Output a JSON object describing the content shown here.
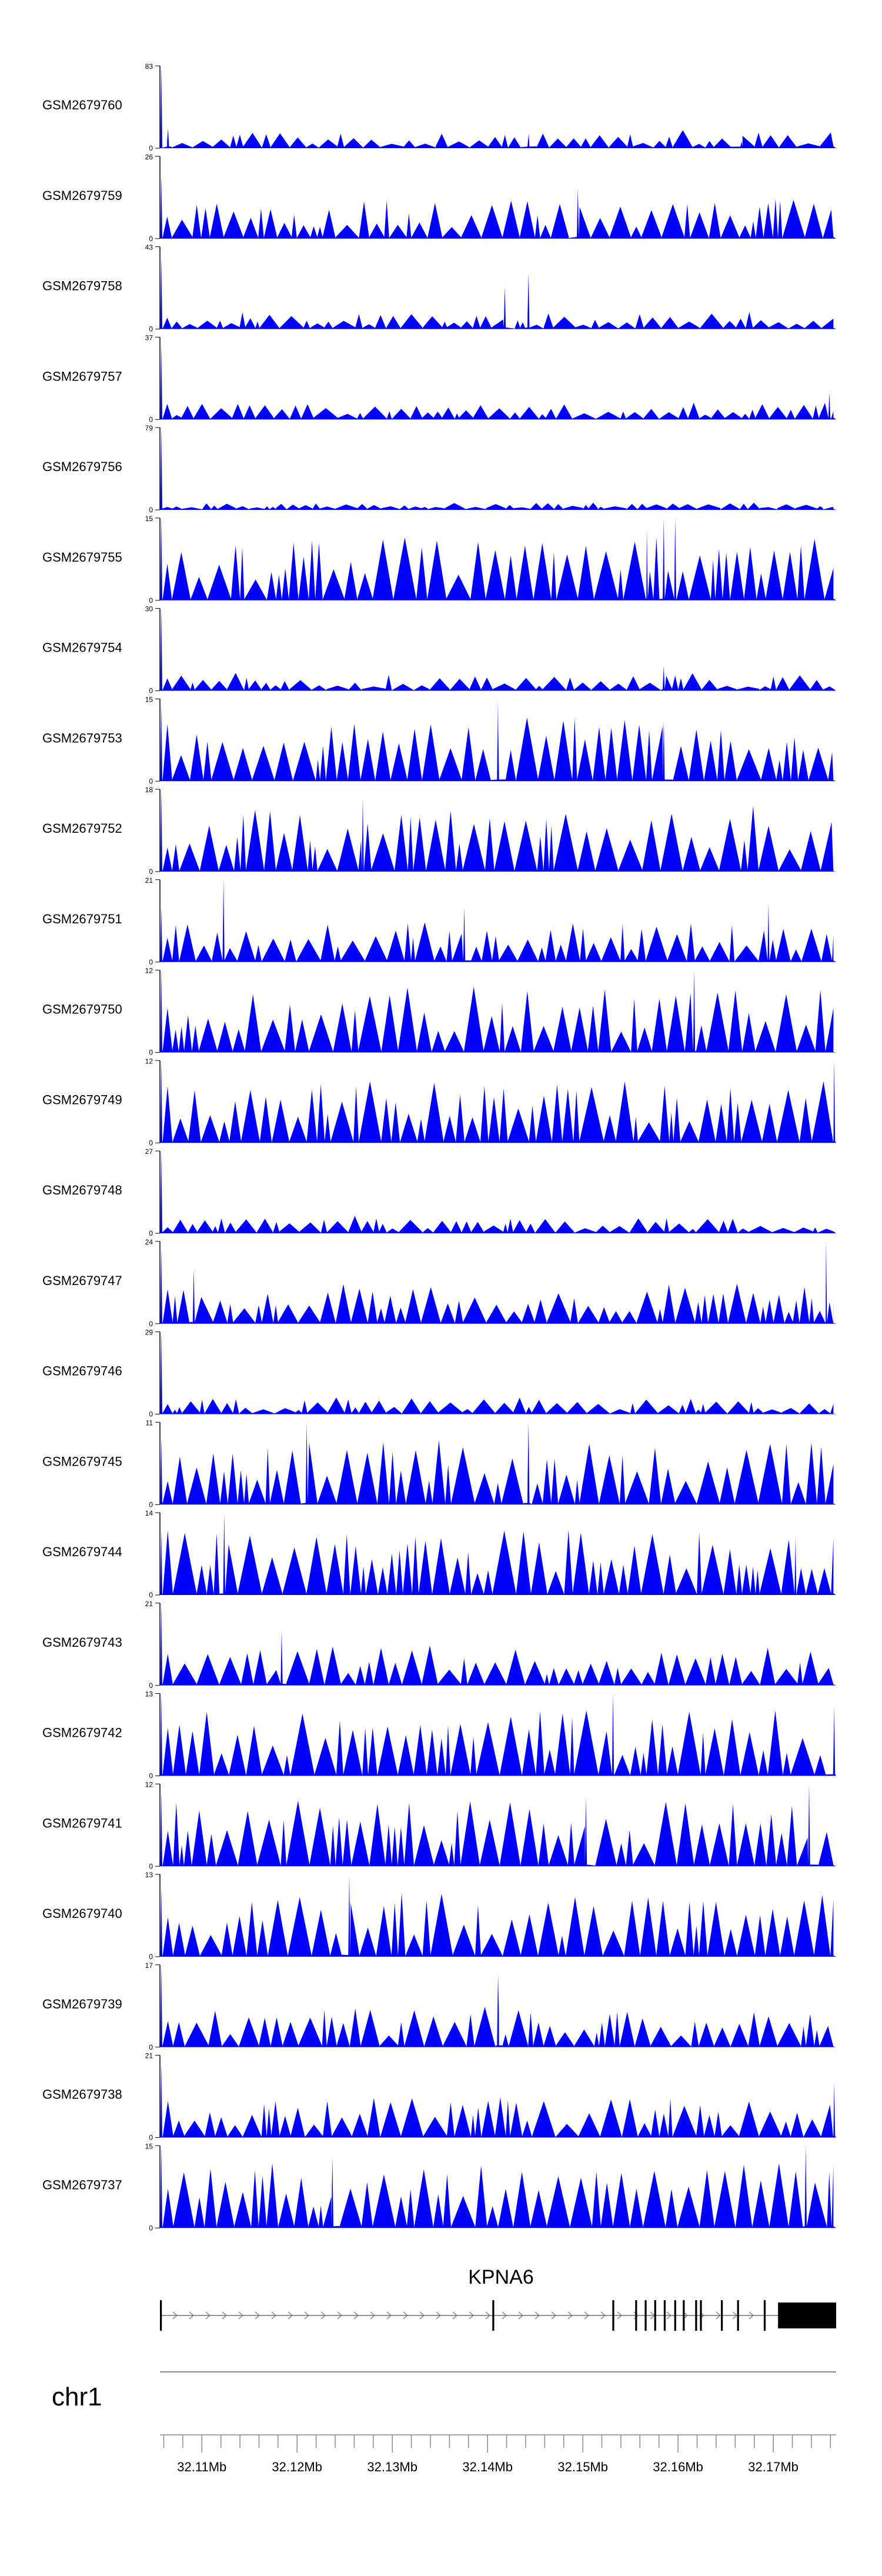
{
  "chart_data": {
    "type": "area",
    "title": "",
    "chromosome": "chr1",
    "gene": "KPNA6",
    "xlim": [
      32.1056,
      32.1766
    ],
    "x_ticks": [
      32.11,
      32.12,
      32.13,
      32.14,
      32.15,
      32.16,
      32.17
    ],
    "x_tick_labels": [
      "32.11Mb",
      "32.12Mb",
      "32.13Mb",
      "32.14Mb",
      "32.15Mb",
      "32.16Mb",
      "32.17Mb"
    ],
    "tracks": [
      {
        "name": "GSM2679760",
        "ymax": 83,
        "ymin_label": "0",
        "ymax_label": "83",
        "seed": 11,
        "profile": "spiky",
        "peaks": [
          {
            "x": 0.002,
            "y": 83
          },
          {
            "x": 0.012,
            "y": 20
          },
          {
            "x": 0.545,
            "y": 12
          },
          {
            "x": 0.86,
            "y": 7
          }
        ]
      },
      {
        "name": "GSM2679759",
        "ymax": 26,
        "ymin_label": "0",
        "ymax_label": "26",
        "seed": 23,
        "profile": "medium",
        "peaks": [
          {
            "x": 0.002,
            "y": 20
          },
          {
            "x": 0.618,
            "y": 16
          }
        ]
      },
      {
        "name": "GSM2679758",
        "ymax": 43,
        "ymin_label": "0",
        "ymax_label": "43",
        "seed": 37,
        "profile": "spiky",
        "peaks": [
          {
            "x": 0.002,
            "y": 38
          },
          {
            "x": 0.51,
            "y": 22
          },
          {
            "x": 0.545,
            "y": 29
          }
        ]
      },
      {
        "name": "GSM2679757",
        "ymax": 37,
        "ymin_label": "0",
        "ymax_label": "37",
        "seed": 41,
        "profile": "spiky",
        "peaks": [
          {
            "x": 0.002,
            "y": 34
          },
          {
            "x": 0.99,
            "y": 12
          }
        ]
      },
      {
        "name": "GSM2679756",
        "ymax": 79,
        "ymin_label": "0",
        "ymax_label": "79",
        "seed": 53,
        "profile": "verylow",
        "peaks": [
          {
            "x": 0.002,
            "y": 79
          }
        ]
      },
      {
        "name": "GSM2679755",
        "ymax": 15,
        "ymin_label": "0",
        "ymax_label": "15",
        "seed": 67,
        "profile": "dense",
        "peaks": [
          {
            "x": 0.002,
            "y": 15
          },
          {
            "x": 0.72,
            "y": 13
          },
          {
            "x": 0.745,
            "y": 15
          },
          {
            "x": 0.762,
            "y": 15
          }
        ]
      },
      {
        "name": "GSM2679754",
        "ymax": 30,
        "ymin_label": "0",
        "ymax_label": "30",
        "seed": 71,
        "profile": "spiky",
        "peaks": [
          {
            "x": 0.002,
            "y": 30
          },
          {
            "x": 0.745,
            "y": 9
          }
        ]
      },
      {
        "name": "GSM2679753",
        "ymax": 15,
        "ymin_label": "0",
        "ymax_label": "15",
        "seed": 83,
        "profile": "dense",
        "peaks": [
          {
            "x": 0.002,
            "y": 14
          },
          {
            "x": 0.5,
            "y": 15
          },
          {
            "x": 0.745,
            "y": 11
          }
        ]
      },
      {
        "name": "GSM2679752",
        "ymax": 18,
        "ymin_label": "0",
        "ymax_label": "18",
        "seed": 97,
        "profile": "dense",
        "peaks": [
          {
            "x": 0.002,
            "y": 18
          },
          {
            "x": 0.3,
            "y": 16
          }
        ]
      },
      {
        "name": "GSM2679751",
        "ymax": 21,
        "ymin_label": "0",
        "ymax_label": "21",
        "seed": 101,
        "profile": "medium",
        "peaks": [
          {
            "x": 0.002,
            "y": 14
          },
          {
            "x": 0.094,
            "y": 21
          },
          {
            "x": 0.45,
            "y": 14
          },
          {
            "x": 0.9,
            "y": 15
          }
        ]
      },
      {
        "name": "GSM2679750",
        "ymax": 12,
        "ymin_label": "0",
        "ymax_label": "12",
        "seed": 113,
        "profile": "dense",
        "peaks": [
          {
            "x": 0.002,
            "y": 12
          },
          {
            "x": 0.79,
            "y": 12
          }
        ]
      },
      {
        "name": "GSM2679749",
        "ymax": 12,
        "ymin_label": "0",
        "ymax_label": "12",
        "seed": 127,
        "profile": "dense",
        "peaks": [
          {
            "x": 0.002,
            "y": 12
          },
          {
            "x": 0.997,
            "y": 12
          }
        ]
      },
      {
        "name": "GSM2679748",
        "ymax": 27,
        "ymin_label": "0",
        "ymax_label": "27",
        "seed": 131,
        "profile": "spiky",
        "peaks": [
          {
            "x": 0.002,
            "y": 27
          }
        ]
      },
      {
        "name": "GSM2679747",
        "ymax": 24,
        "ymin_label": "0",
        "ymax_label": "24",
        "seed": 149,
        "profile": "medium",
        "peaks": [
          {
            "x": 0.002,
            "y": 22
          },
          {
            "x": 0.05,
            "y": 16
          },
          {
            "x": 0.985,
            "y": 24
          }
        ]
      },
      {
        "name": "GSM2679746",
        "ymax": 29,
        "ymin_label": "0",
        "ymax_label": "29",
        "seed": 157,
        "profile": "spiky",
        "peaks": [
          {
            "x": 0.002,
            "y": 29
          }
        ]
      },
      {
        "name": "GSM2679745",
        "ymax": 11,
        "ymin_label": "0",
        "ymax_label": "11",
        "seed": 163,
        "profile": "dense",
        "peaks": [
          {
            "x": 0.002,
            "y": 9
          },
          {
            "x": 0.217,
            "y": 11
          },
          {
            "x": 0.545,
            "y": 11
          }
        ]
      },
      {
        "name": "GSM2679744",
        "ymax": 14,
        "ymin_label": "0",
        "ymax_label": "14",
        "seed": 173,
        "profile": "dense",
        "peaks": [
          {
            "x": 0.002,
            "y": 11
          },
          {
            "x": 0.095,
            "y": 14
          },
          {
            "x": 0.94,
            "y": 10
          }
        ]
      },
      {
        "name": "GSM2679743",
        "ymax": 21,
        "ymin_label": "0",
        "ymax_label": "21",
        "seed": 181,
        "profile": "medium",
        "peaks": [
          {
            "x": 0.002,
            "y": 21
          },
          {
            "x": 0.18,
            "y": 14
          }
        ]
      },
      {
        "name": "GSM2679742",
        "ymax": 13,
        "ymin_label": "0",
        "ymax_label": "13",
        "seed": 191,
        "profile": "dense",
        "peaks": [
          {
            "x": 0.002,
            "y": 13
          },
          {
            "x": 0.67,
            "y": 13
          },
          {
            "x": 0.997,
            "y": 11
          }
        ]
      },
      {
        "name": "GSM2679741",
        "ymax": 12,
        "ymin_label": "0",
        "ymax_label": "12",
        "seed": 199,
        "profile": "dense",
        "peaks": [
          {
            "x": 0.002,
            "y": 11
          },
          {
            "x": 0.63,
            "y": 10
          },
          {
            "x": 0.96,
            "y": 12
          }
        ]
      },
      {
        "name": "GSM2679740",
        "ymax": 13,
        "ymin_label": "0",
        "ymax_label": "13",
        "seed": 211,
        "profile": "dense",
        "peaks": [
          {
            "x": 0.002,
            "y": 11
          },
          {
            "x": 0.28,
            "y": 13
          }
        ]
      },
      {
        "name": "GSM2679739",
        "ymax": 17,
        "ymin_label": "0",
        "ymax_label": "17",
        "seed": 223,
        "profile": "medium",
        "peaks": [
          {
            "x": 0.002,
            "y": 17
          },
          {
            "x": 0.5,
            "y": 15
          }
        ]
      },
      {
        "name": "GSM2679738",
        "ymax": 21,
        "ymin_label": "0",
        "ymax_label": "21",
        "seed": 227,
        "profile": "medium",
        "peaks": [
          {
            "x": 0.002,
            "y": 19
          },
          {
            "x": 0.997,
            "y": 14
          }
        ]
      },
      {
        "name": "GSM2679737",
        "ymax": 15,
        "ymin_label": "0",
        "ymax_label": "15",
        "seed": 233,
        "profile": "dense",
        "peaks": [
          {
            "x": 0.002,
            "y": 15
          },
          {
            "x": 0.255,
            "y": 13
          },
          {
            "x": 0.955,
            "y": 15
          }
        ]
      }
    ],
    "gene_model": {
      "strand": "+",
      "start": 32.1056,
      "end": 32.1766,
      "exons": [
        {
          "start": 32.1056,
          "end": 32.1058
        },
        {
          "start": 32.1405,
          "end": 32.1407
        },
        {
          "start": 32.1531,
          "end": 32.1533
        },
        {
          "start": 32.1555,
          "end": 32.1557
        },
        {
          "start": 32.1565,
          "end": 32.1567
        },
        {
          "start": 32.1575,
          "end": 32.1577
        },
        {
          "start": 32.1585,
          "end": 32.1587
        },
        {
          "start": 32.1596,
          "end": 32.1598
        },
        {
          "start": 32.1605,
          "end": 32.1607
        },
        {
          "start": 32.1618,
          "end": 32.162
        },
        {
          "start": 32.1623,
          "end": 32.1625
        },
        {
          "start": 32.1645,
          "end": 32.1647
        },
        {
          "start": 32.1662,
          "end": 32.1664
        },
        {
          "start": 32.169,
          "end": 32.1692
        },
        {
          "start": 32.1705,
          "end": 32.1766
        }
      ]
    },
    "colors": {
      "signal": "#0000ff",
      "axis": "#000000",
      "ideogram_line": "#888888",
      "text": "#000000"
    }
  }
}
